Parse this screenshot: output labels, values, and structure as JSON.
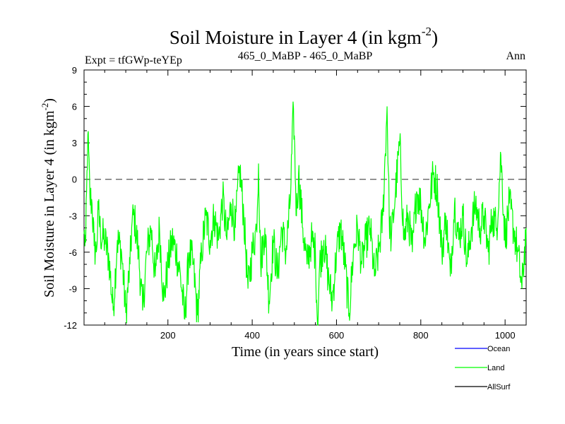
{
  "chart_data": {
    "type": "line",
    "title_main": "Soil Moisture in Layer 4 (in kgm",
    "title_sup": "-2",
    "title_close": ")",
    "subtitle_left": "Expt = tfGWp-teYEp",
    "subtitle_center": "465_0_MaBP - 465_0_MaBP",
    "subtitle_right": "Ann",
    "xlabel": "Time (in years since start)",
    "ylabel_main": "Soil Moisture in Layer 4 (in kgm",
    "ylabel_sup": "-2",
    "ylabel_close": ")",
    "xlim": [
      1,
      1050
    ],
    "ylim": [
      -12,
      9
    ],
    "x_ticks": [
      200,
      400,
      600,
      800,
      1000
    ],
    "y_ticks": [
      9,
      6,
      3,
      0,
      -3,
      -6,
      -9,
      -12
    ],
    "reference_line_y": 0,
    "colors": {
      "Ocean": "#0000ff",
      "Land": "#00ff00",
      "AllSurf": "#000000"
    },
    "legend": [
      "Ocean",
      "Land",
      "AllSurf"
    ],
    "series": [
      {
        "name": "Land",
        "x_start": 1,
        "x_step": 1,
        "anchors": [
          [
            1,
            -4.5
          ],
          [
            5,
            -5.2
          ],
          [
            10,
            3.7
          ],
          [
            15,
            -1.5
          ],
          [
            20,
            -2
          ],
          [
            25,
            -5.5
          ],
          [
            30,
            -6
          ],
          [
            35,
            -2.5
          ],
          [
            40,
            -4.5
          ],
          [
            50,
            -5
          ],
          [
            60,
            -6.5
          ],
          [
            70,
            -10.8
          ],
          [
            80,
            -5
          ],
          [
            90,
            -6
          ],
          [
            100,
            -11
          ],
          [
            110,
            -7
          ],
          [
            115,
            -3.5
          ],
          [
            120,
            -3
          ],
          [
            130,
            -6
          ],
          [
            140,
            -10.8
          ],
          [
            150,
            -6
          ],
          [
            160,
            -4
          ],
          [
            170,
            -8
          ],
          [
            180,
            -4
          ],
          [
            190,
            -10
          ],
          [
            200,
            -7
          ],
          [
            210,
            -5
          ],
          [
            220,
            -6
          ],
          [
            230,
            -8
          ],
          [
            240,
            -11.5
          ],
          [
            250,
            -6
          ],
          [
            260,
            -7
          ],
          [
            270,
            -11.2
          ],
          [
            280,
            -6
          ],
          [
            290,
            -3
          ],
          [
            300,
            -5
          ],
          [
            310,
            -3
          ],
          [
            320,
            -5
          ],
          [
            330,
            -1.5
          ],
          [
            340,
            -5
          ],
          [
            350,
            -2
          ],
          [
            360,
            -4
          ],
          [
            370,
            1
          ],
          [
            380,
            -3
          ],
          [
            390,
            -9
          ],
          [
            400,
            -6
          ],
          [
            410,
            -4
          ],
          [
            415,
            1.3
          ],
          [
            420,
            -7
          ],
          [
            430,
            -4
          ],
          [
            440,
            -10
          ],
          [
            450,
            -5
          ],
          [
            460,
            -8
          ],
          [
            470,
            -4
          ],
          [
            480,
            -6
          ],
          [
            490,
            -2
          ],
          [
            498,
            5.8
          ],
          [
            505,
            -3
          ],
          [
            510,
            0.5
          ],
          [
            520,
            -4
          ],
          [
            530,
            -7
          ],
          [
            540,
            -5
          ],
          [
            550,
            -6
          ],
          [
            555,
            -12
          ],
          [
            560,
            -7
          ],
          [
            570,
            -5
          ],
          [
            580,
            -8
          ],
          [
            590,
            -10
          ],
          [
            600,
            -6
          ],
          [
            610,
            -4
          ],
          [
            620,
            -7
          ],
          [
            630,
            -11
          ],
          [
            640,
            -6
          ],
          [
            650,
            -4
          ],
          [
            660,
            -7
          ],
          [
            670,
            -5
          ],
          [
            680,
            -4
          ],
          [
            690,
            -8
          ],
          [
            700,
            -6
          ],
          [
            710,
            -3
          ],
          [
            720,
            6
          ],
          [
            725,
            -3
          ],
          [
            730,
            -5
          ],
          [
            740,
            -1
          ],
          [
            750,
            3
          ],
          [
            760,
            -5
          ],
          [
            770,
            -3
          ],
          [
            780,
            -6
          ],
          [
            790,
            -1
          ],
          [
            800,
            -2
          ],
          [
            810,
            -5
          ],
          [
            820,
            -2
          ],
          [
            830,
            0.5
          ],
          [
            840,
            -1
          ],
          [
            850,
            -6
          ],
          [
            860,
            -3
          ],
          [
            870,
            -8
          ],
          [
            880,
            -2
          ],
          [
            890,
            -5
          ],
          [
            900,
            -3
          ],
          [
            910,
            -7
          ],
          [
            920,
            -4
          ],
          [
            930,
            -2
          ],
          [
            940,
            -4
          ],
          [
            950,
            -3
          ],
          [
            960,
            -6
          ],
          [
            970,
            -3
          ],
          [
            980,
            -4
          ],
          [
            990,
            2
          ],
          [
            1000,
            -5
          ],
          [
            1010,
            -2
          ],
          [
            1020,
            -4
          ],
          [
            1030,
            -6
          ],
          [
            1040,
            -9
          ],
          [
            1050,
            -4
          ]
        ],
        "noise_amplitude": 1.7
      }
    ]
  }
}
